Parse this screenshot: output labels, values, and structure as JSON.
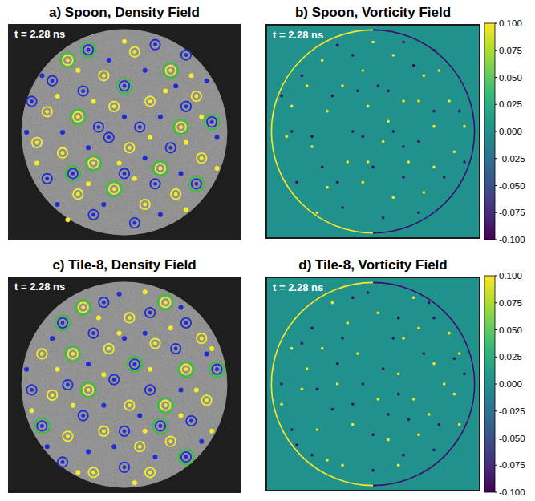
{
  "chart_data": [
    {
      "type": "scatter",
      "title": "a) Spoon, Density Field",
      "annotation": "t = 2.28 ns",
      "xlim": [
        -1.13,
        1.13
      ],
      "ylim": [
        -1.05,
        1.05
      ],
      "tick_labels": false,
      "series": [
        {
          "color": "#1f2bd6",
          "marker": "dot",
          "x": [
            -0.8,
            -0.15,
            0.2,
            0.5,
            -0.6,
            0.0,
            0.35,
            0.9,
            -0.35,
            0.2,
            0.55,
            -0.65,
            -0.2,
            0.35,
            0.8,
            -0.95
          ],
          "y": [
            0.55,
            0.7,
            0.6,
            0.45,
            0.0,
            0.15,
            0.15,
            -0.05,
            -0.15,
            -0.25,
            -0.4,
            -0.7,
            -0.7,
            -0.8,
            0.5,
            0.0
          ]
        },
        {
          "color": "#f2ee2a",
          "marker": "dot",
          "x": [
            -0.45,
            0.0,
            0.65,
            -0.65,
            -0.3,
            0.4,
            0.75,
            -0.85,
            -0.05,
            0.25,
            0.6,
            -0.35,
            0.1,
            0.6,
            -0.55,
            0.9
          ],
          "y": [
            0.6,
            0.88,
            0.55,
            0.35,
            0.3,
            0.4,
            0.15,
            -0.3,
            -0.3,
            -0.05,
            -0.1,
            -0.5,
            -0.45,
            -0.75,
            -0.85,
            -0.35
          ]
        },
        {
          "color": "#f2ee2a",
          "marker": "ring",
          "x": [
            -0.55,
            -0.2,
            0.1,
            0.45,
            0.7,
            -0.75,
            -0.45,
            -0.1,
            0.25,
            0.55,
            -0.6,
            -0.3,
            0.05,
            0.35,
            0.75,
            -0.45,
            -0.1,
            0.2,
            0.5,
            -0.85
          ],
          "y": [
            0.7,
            0.55,
            0.78,
            0.6,
            0.35,
            0.2,
            0.15,
            0.25,
            0.3,
            0.05,
            -0.2,
            -0.3,
            -0.15,
            -0.35,
            -0.25,
            -0.6,
            -0.55,
            -0.7,
            -0.6,
            -0.1
          ]
        },
        {
          "color": "#1f2bd6",
          "marker": "ring",
          "x": [
            -0.35,
            0.3,
            -0.7,
            0.0,
            0.6,
            -0.25,
            0.15,
            0.85,
            -0.9,
            -0.5,
            -0.15,
            0.45,
            0.7,
            -0.75,
            0.0,
            0.3,
            -0.3,
            0.1,
            0.6,
            -0.4
          ],
          "y": [
            0.8,
            0.85,
            0.5,
            0.45,
            0.75,
            0.05,
            0.05,
            0.1,
            0.3,
            -0.4,
            -0.05,
            -0.15,
            -0.5,
            -0.45,
            -0.4,
            -0.5,
            -0.8,
            -0.88,
            0.25,
            0.4
          ]
        },
        {
          "color": "#33c43a",
          "marker": "halo",
          "x": [
            -0.55,
            0.45,
            -0.45,
            0.55,
            -0.3,
            0.35,
            -0.35,
            0.0,
            0.85,
            -0.5,
            0.7,
            -0.1
          ],
          "y": [
            0.7,
            0.6,
            0.15,
            0.05,
            -0.3,
            -0.35,
            0.8,
            0.45,
            0.1,
            -0.4,
            -0.5,
            -0.55
          ]
        }
      ]
    },
    {
      "type": "scatter",
      "title": "b) Spoon, Vorticity Field",
      "annotation": "t = 2.28 ns",
      "xlim": [
        -1.05,
        1.05
      ],
      "ylim": [
        -1.05,
        1.05
      ],
      "tick_labels": false,
      "colorbar": {
        "range": [
          -0.1,
          0.1
        ],
        "ticks": [
          {
            "value": 0.1,
            "label": "0.100"
          },
          {
            "value": 0.075,
            "label": "0.075"
          },
          {
            "value": 0.05,
            "label": "0.050"
          },
          {
            "value": 0.025,
            "label": "0.025"
          },
          {
            "value": 0,
            "label": "0.000"
          },
          {
            "value": -0.025,
            "label": "-0.025"
          },
          {
            "value": -0.05,
            "label": "-0.050"
          },
          {
            "value": -0.075,
            "label": "-0.075"
          },
          {
            "value": -0.1,
            "label": "-0.100"
          }
        ]
      },
      "series": [
        {
          "color": "#fde725",
          "marker": "dot",
          "x": [
            -0.5,
            -0.1,
            0.2,
            0.5,
            0.75,
            -0.8,
            -0.45,
            -0.05,
            0.3,
            0.6,
            -0.6,
            -0.25,
            0.1,
            0.35,
            0.8,
            -0.45,
            -0.1,
            0.2,
            0.5,
            -0.85,
            -0.3,
            0.0,
            0.65,
            -0.65,
            0.45,
            -0.05,
            0.6,
            -0.55,
            0.15,
            0.9
          ],
          "y": [
            0.7,
            0.6,
            0.75,
            0.55,
            0.3,
            0.25,
            0.2,
            0.25,
            0.3,
            0.05,
            -0.15,
            -0.3,
            -0.1,
            -0.3,
            -0.2,
            -0.55,
            -0.5,
            -0.65,
            -0.6,
            -0.05,
            0.45,
            0.88,
            0.6,
            0.45,
            0.3,
            -0.3,
            -0.35,
            -0.8,
            0.1,
            0.05
          ]
        },
        {
          "color": "#3b0f70",
          "marker": "dot",
          "x": [
            -0.35,
            0.3,
            -0.7,
            0.05,
            0.6,
            -0.2,
            0.2,
            0.85,
            -0.9,
            -0.5,
            -0.1,
            0.45,
            0.7,
            -0.75,
            0.0,
            0.3,
            -0.3,
            0.1,
            0.6,
            -0.4,
            -0.8,
            -0.2,
            0.4,
            0.15,
            -0.6,
            0.3,
            -0.35,
            0.45,
            0.9,
            -0.15
          ],
          "y": [
            0.85,
            0.88,
            0.55,
            0.45,
            0.8,
            0.0,
            0.0,
            0.2,
            0.35,
            -0.35,
            -0.05,
            -0.1,
            -0.45,
            -0.5,
            -0.35,
            -0.45,
            -0.75,
            -0.85,
            0.2,
            0.35,
            0.0,
            0.75,
            0.65,
            0.4,
            -0.05,
            -0.15,
            -0.5,
            -0.8,
            -0.3,
            0.4
          ]
        }
      ]
    },
    {
      "type": "scatter",
      "title": "c) Tile-8, Density Field",
      "annotation": "t = 2.28 ns",
      "xlim": [
        -1.13,
        1.13
      ],
      "ylim": [
        -1.05,
        1.05
      ],
      "tick_labels": false,
      "series": [
        {
          "color": "#1f2bd6",
          "marker": "dot",
          "x": [
            -0.7,
            -0.05,
            0.55,
            -0.35,
            0.2,
            0.8,
            -0.95,
            -0.2,
            0.15,
            0.55,
            -0.75,
            -0.35,
            0.3,
            0.75,
            -0.1,
            0.0
          ],
          "y": [
            0.45,
            0.88,
            0.75,
            0.2,
            0.5,
            0.3,
            0.15,
            -0.2,
            -0.3,
            -0.05,
            -0.6,
            -0.65,
            -0.7,
            -0.55,
            -0.6,
            0.45
          ]
        },
        {
          "color": "#f2ee2a",
          "marker": "dot",
          "x": [
            -0.25,
            0.2,
            0.85,
            -0.65,
            -0.05,
            0.45,
            0.7,
            -0.9,
            -0.2,
            0.25,
            -0.5,
            0.2,
            0.55,
            -0.45,
            0.1,
            0.85
          ],
          "y": [
            0.65,
            0.9,
            0.35,
            0.15,
            0.5,
            0.55,
            -0.05,
            -0.25,
            0.1,
            0.15,
            -0.2,
            -0.45,
            -0.3,
            -0.85,
            -0.95,
            -0.45
          ]
        },
        {
          "color": "#f2ee2a",
          "marker": "ring",
          "x": [
            -0.4,
            0.05,
            0.4,
            0.75,
            -0.8,
            -0.5,
            -0.15,
            0.3,
            0.6,
            -0.7,
            -0.35,
            0.05,
            0.4,
            0.8,
            -0.55,
            -0.2,
            0.15,
            0.45,
            -0.3,
            0.25
          ],
          "y": [
            0.75,
            0.65,
            0.8,
            0.45,
            0.3,
            0.3,
            0.35,
            0.4,
            0.15,
            -0.1,
            -0.05,
            -0.2,
            -0.2,
            -0.15,
            -0.5,
            -0.45,
            -0.6,
            -0.55,
            -0.85,
            -0.85
          ]
        },
        {
          "color": "#1f2bd6",
          "marker": "ring",
          "x": [
            -0.6,
            -0.2,
            0.25,
            0.6,
            -0.3,
            0.1,
            0.5,
            0.9,
            -0.9,
            -0.55,
            -0.1,
            0.25,
            0.65,
            -0.8,
            -0.4,
            0.0,
            0.35,
            -0.6,
            0.0,
            0.6
          ],
          "y": [
            0.6,
            0.8,
            0.7,
            0.6,
            0.5,
            0.2,
            0.35,
            0.15,
            -0.05,
            0.0,
            0.05,
            -0.05,
            -0.35,
            -0.4,
            -0.3,
            -0.45,
            -0.4,
            -0.75,
            -0.8,
            -0.7
          ]
        },
        {
          "color": "#33c43a",
          "marker": "halo",
          "x": [
            -0.4,
            0.4,
            -0.5,
            0.6,
            -0.35,
            0.4,
            -0.6,
            0.1,
            0.9,
            -0.8,
            0.35,
            0.6
          ],
          "y": [
            0.75,
            0.8,
            0.3,
            0.15,
            -0.05,
            -0.2,
            0.6,
            0.2,
            0.15,
            -0.4,
            -0.4,
            -0.7
          ]
        }
      ]
    },
    {
      "type": "scatter",
      "title": "d) Tile-8, Vorticity Field",
      "annotation": "t = 2.28 ns",
      "xlim": [
        -1.05,
        1.05
      ],
      "ylim": [
        -1.05,
        1.05
      ],
      "tick_labels": false,
      "colorbar": {
        "range": [
          -0.1,
          0.1
        ],
        "ticks": [
          {
            "value": 0.1,
            "label": "0.100"
          },
          {
            "value": 0.075,
            "label": "0.075"
          },
          {
            "value": 0.05,
            "label": "0.050"
          },
          {
            "value": 0.025,
            "label": "0.025"
          },
          {
            "value": 0,
            "label": "0.000"
          },
          {
            "value": -0.025,
            "label": "-0.025"
          },
          {
            "value": -0.05,
            "label": "-0.050"
          },
          {
            "value": -0.075,
            "label": "-0.075"
          },
          {
            "value": -0.1,
            "label": "-0.100"
          }
        ]
      },
      "series": [
        {
          "color": "#fde725",
          "marker": "dot",
          "x": [
            -0.4,
            0.05,
            0.4,
            0.75,
            -0.8,
            -0.5,
            -0.15,
            0.3,
            0.6,
            -0.7,
            -0.35,
            0.05,
            0.4,
            0.8,
            -0.55,
            -0.2,
            0.15,
            0.45,
            -0.3,
            0.25,
            -0.25,
            0.85,
            -0.65,
            0.45,
            0.7,
            -0.9,
            0.25,
            0.55,
            -0.45,
            0.85
          ],
          "y": [
            0.8,
            0.7,
            0.85,
            0.5,
            0.35,
            0.35,
            0.3,
            0.45,
            0.2,
            -0.05,
            0.0,
            -0.15,
            -0.15,
            -0.1,
            -0.45,
            -0.4,
            -0.55,
            -0.5,
            -0.8,
            -0.8,
            0.6,
            0.3,
            0.15,
            0.55,
            0.0,
            -0.2,
            0.1,
            -0.3,
            -0.75,
            -0.4
          ]
        },
        {
          "color": "#3b0f70",
          "marker": "dot",
          "x": [
            -0.6,
            -0.2,
            0.25,
            0.6,
            -0.3,
            0.1,
            0.5,
            0.9,
            -0.9,
            -0.55,
            -0.1,
            0.25,
            0.65,
            -0.8,
            -0.4,
            0.0,
            0.35,
            -0.6,
            0.0,
            0.6,
            -0.7,
            -0.05,
            0.55,
            -0.35,
            0.2,
            0.8,
            -0.2,
            0.15,
            -0.75,
            0.3
          ],
          "y": [
            0.55,
            0.85,
            0.65,
            0.65,
            0.45,
            0.15,
            0.3,
            0.1,
            0.0,
            -0.05,
            0.0,
            -0.1,
            -0.4,
            -0.45,
            -0.25,
            -0.5,
            -0.35,
            -0.7,
            -0.85,
            -0.65,
            0.4,
            0.9,
            0.8,
            0.2,
            0.45,
            0.25,
            -0.2,
            -0.3,
            -0.6,
            -0.7
          ]
        }
      ]
    }
  ]
}
